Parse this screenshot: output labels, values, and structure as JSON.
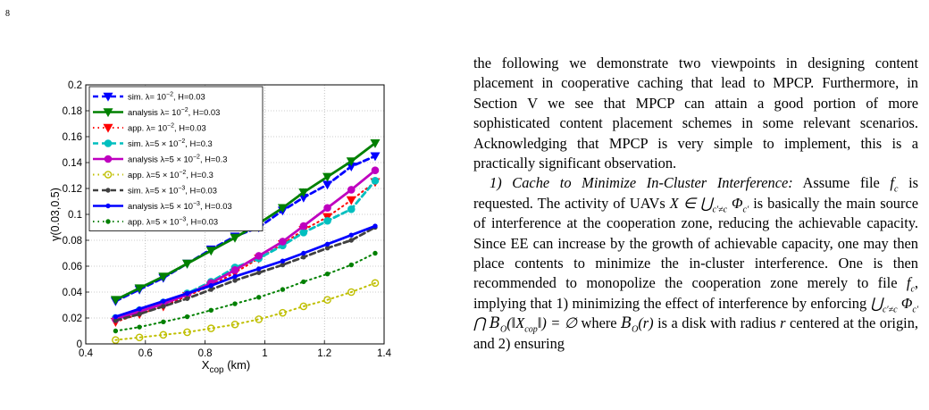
{
  "page_number": "8",
  "figure": {
    "chart_data": {
      "type": "line",
      "title": "",
      "xlabel": "X",
      "xlabel_sub": "cop",
      "xlabel_unit": " (km)",
      "ylabel": "γ(0.03,0.5)",
      "xlim": [
        0.4,
        1.4
      ],
      "ylim": [
        0,
        0.2
      ],
      "xticks": [
        "0.4",
        "0.6",
        "0.8",
        "1",
        "1.2",
        "1.4"
      ],
      "yticks": [
        "0",
        "0.02",
        "0.04",
        "0.06",
        "0.08",
        "0.1",
        "0.12",
        "0.14",
        "0.16",
        "0.18",
        "0.2"
      ],
      "grid": true,
      "legend_position": "top-left",
      "series": [
        {
          "name": "sim. λ= 10⁻², H=0.03",
          "color": "#0000ff",
          "line": "dashed",
          "marker": "triangle-down",
          "x": [
            0.5,
            0.58,
            0.66,
            0.74,
            0.82,
            0.9,
            0.98,
            1.06,
            1.13,
            1.21,
            1.29,
            1.37
          ],
          "y": [
            0.033,
            0.042,
            0.051,
            0.062,
            0.073,
            0.083,
            0.09,
            0.103,
            0.113,
            0.123,
            0.137,
            0.145
          ]
        },
        {
          "name": "analysis λ= 10⁻², H=0.03",
          "color": "#008000",
          "line": "solid",
          "marker": "triangle-down",
          "x": [
            0.5,
            0.58,
            0.66,
            0.74,
            0.82,
            0.9,
            0.98,
            1.06,
            1.13,
            1.21,
            1.29,
            1.37
          ],
          "y": [
            0.034,
            0.043,
            0.052,
            0.062,
            0.072,
            0.082,
            0.093,
            0.105,
            0.117,
            0.129,
            0.141,
            0.155
          ]
        },
        {
          "name": "app. λ= 10⁻², H=0.03",
          "color": "#ff0000",
          "line": "dotted",
          "marker": "triangle-down",
          "x": [
            0.5,
            0.58,
            0.66,
            0.74,
            0.82,
            0.9,
            0.98,
            1.06,
            1.13,
            1.21,
            1.29,
            1.37
          ],
          "y": [
            0.017,
            0.023,
            0.029,
            0.037,
            0.045,
            0.055,
            0.066,
            0.077,
            0.088,
            0.098,
            0.111,
            0.125
          ]
        },
        {
          "name": "sim. λ=5 × 10⁻², H=0.3",
          "color": "#00bfbf",
          "line": "dashed",
          "marker": "circle",
          "x": [
            0.5,
            0.58,
            0.66,
            0.74,
            0.82,
            0.9,
            0.98,
            1.06,
            1.13,
            1.21,
            1.29,
            1.37
          ],
          "y": [
            0.02,
            0.026,
            0.032,
            0.039,
            0.048,
            0.059,
            0.066,
            0.076,
            0.086,
            0.095,
            0.104,
            0.126
          ]
        },
        {
          "name": "analysis λ=5 × 10⁻², H=0.3",
          "color": "#bf00bf",
          "line": "solid",
          "marker": "circle",
          "x": [
            0.5,
            0.58,
            0.66,
            0.74,
            0.82,
            0.9,
            0.98,
            1.06,
            1.13,
            1.21,
            1.29,
            1.37
          ],
          "y": [
            0.019,
            0.025,
            0.031,
            0.038,
            0.047,
            0.057,
            0.068,
            0.079,
            0.091,
            0.105,
            0.119,
            0.134
          ]
        },
        {
          "name": "app. λ=5 × 10⁻², H=0.3",
          "color": "#bfbf00",
          "line": "dotted",
          "marker": "circle-open",
          "x": [
            0.5,
            0.58,
            0.66,
            0.74,
            0.82,
            0.9,
            0.98,
            1.06,
            1.13,
            1.21,
            1.29,
            1.37
          ],
          "y": [
            0.003,
            0.005,
            0.007,
            0.009,
            0.012,
            0.015,
            0.019,
            0.024,
            0.029,
            0.034,
            0.04,
            0.047
          ]
        },
        {
          "name": "sim. λ=5 × 10⁻³, H=0.03",
          "color": "#404040",
          "line": "dashed",
          "marker": "dot",
          "x": [
            0.5,
            0.58,
            0.66,
            0.74,
            0.82,
            0.9,
            0.98,
            1.06,
            1.13,
            1.21,
            1.29,
            1.37
          ],
          "y": [
            0.018,
            0.023,
            0.029,
            0.035,
            0.042,
            0.049,
            0.055,
            0.061,
            0.067,
            0.074,
            0.08,
            0.09
          ]
        },
        {
          "name": "analysis λ=5 × 10⁻³, H=0.03",
          "color": "#0000ff",
          "line": "solid",
          "marker": "dot",
          "x": [
            0.5,
            0.58,
            0.66,
            0.74,
            0.82,
            0.9,
            0.98,
            1.06,
            1.13,
            1.21,
            1.29,
            1.37
          ],
          "y": [
            0.021,
            0.027,
            0.033,
            0.039,
            0.045,
            0.052,
            0.058,
            0.064,
            0.07,
            0.077,
            0.084,
            0.091
          ]
        },
        {
          "name": "app. λ=5 × 10⁻³, H=0.03",
          "color": "#008000",
          "line": "dotted",
          "marker": "dot",
          "x": [
            0.5,
            0.58,
            0.66,
            0.74,
            0.82,
            0.9,
            0.98,
            1.06,
            1.13,
            1.21,
            1.29,
            1.37
          ],
          "y": [
            0.01,
            0.013,
            0.017,
            0.021,
            0.026,
            0.031,
            0.036,
            0.042,
            0.048,
            0.054,
            0.061,
            0.07
          ]
        }
      ]
    }
  },
  "body": {
    "p1": "the following we demonstrate two viewpoints in designing content placement in cooperative caching that lead to MPCP. Furthermore, in Section V we see that MPCP can attain a good portion of more sophisticated content placement schemes in some relevant scenarios. Acknowledging that MPCP is very simple to implement, this is a practically significant observation.",
    "p2_heading": "1) Cache to Minimize In-Cluster Interference:",
    "p2_a": " Assume file ",
    "p2_b": " is requested. The activity of UAVs ",
    "p2_c": " is basically the main source of interference at the cooperation zone, reducing the achievable capacity. Since EE can increase by the growth of achievable capacity, one may then place contents to minimize the in-cluster interference. One is then recommended to monopolize the cooperation zone merely to file ",
    "p2_d": ", implying that 1) minimizing the effect of interference by enforcing ",
    "p2_e": " where ",
    "p2_f": " is a disk with radius ",
    "p2_g": " centered at the origin, and 2) ensuring"
  }
}
